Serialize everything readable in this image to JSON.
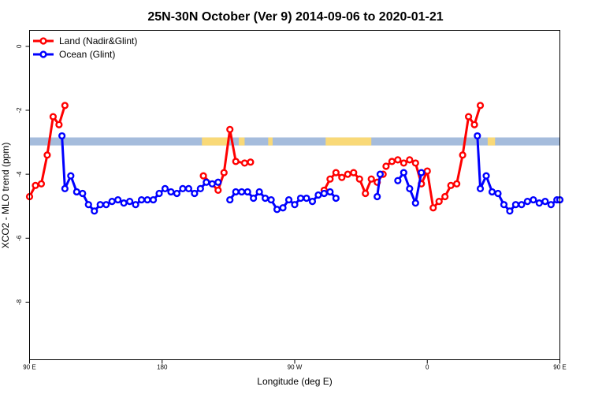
{
  "chart_data": {
    "type": "line",
    "title": "25N-30N October (Ver 9)   2014-09-06 to 2020-01-21",
    "xlabel": "Longitude (deg E)",
    "ylabel": "XCO2 - MLO trend (ppm)",
    "xlim": [
      90,
      450
    ],
    "ylim": [
      -9.8,
      0.5
    ],
    "x_ticks": [
      {
        "value": 90,
        "label": "90 E"
      },
      {
        "value": 180,
        "label": "180"
      },
      {
        "value": 270,
        "label": "90 W"
      },
      {
        "value": 360,
        "label": "0"
      },
      {
        "value": 450,
        "label": "90 E"
      },
      {
        "value": 540,
        "label": "180"
      }
    ],
    "x_range_shown": [
      90,
      450
    ],
    "y_ticks": [
      0,
      -2,
      -4,
      -6,
      -8
    ],
    "grid": false,
    "legend_position": "top-left",
    "land_mask_band": {
      "y_range": [
        -2.85,
        -3.1
      ],
      "ocean_color": "#a5bcdc",
      "land_color": "#f9d978",
      "land_segments": [
        [
          207,
          225
        ],
        [
          232,
          236
        ],
        [
          252,
          255
        ],
        [
          291,
          322
        ],
        [
          401,
          406
        ]
      ]
    },
    "series": [
      {
        "name": "Land (Nadir&Glint)",
        "color": "#ff0000",
        "segments": [
          [
            [
              90,
              -4.7
            ],
            [
              94,
              -4.35
            ],
            [
              98,
              -4.3
            ],
            [
              102,
              -3.4
            ],
            [
              106,
              -2.2
            ],
            [
              110,
              -2.45
            ],
            [
              114,
              -1.85
            ]
          ],
          [
            [
              208,
              -4.05
            ],
            [
              218,
              -4.5
            ],
            [
              222,
              -3.95
            ],
            [
              226,
              -2.6
            ],
            [
              230,
              -3.6
            ],
            [
              236,
              -3.65
            ],
            [
              240,
              -3.62
            ]
          ],
          [
            [
              290,
              -4.5
            ],
            [
              294,
              -4.15
            ],
            [
              298,
              -3.95
            ],
            [
              302,
              -4.1
            ],
            [
              306,
              -4.0
            ],
            [
              310,
              -3.95
            ],
            [
              314,
              -4.15
            ],
            [
              318,
              -4.6
            ],
            [
              322,
              -4.15
            ],
            [
              326,
              -4.25
            ],
            [
              330,
              -4.0
            ]
          ],
          [
            [
              332,
              -3.75
            ],
            [
              336,
              -3.6
            ],
            [
              340,
              -3.55
            ],
            [
              344,
              -3.65
            ],
            [
              348,
              -3.55
            ],
            [
              352,
              -3.65
            ],
            [
              356,
              -4.3
            ],
            [
              360,
              -3.9
            ],
            [
              364,
              -5.05
            ],
            [
              368,
              -4.85
            ],
            [
              372,
              -4.7
            ],
            [
              376,
              -4.35
            ],
            [
              380,
              -4.3
            ],
            [
              384,
              -3.4
            ],
            [
              388,
              -2.2
            ],
            [
              392,
              -2.45
            ],
            [
              396,
              -1.85
            ]
          ]
        ]
      },
      {
        "name": "Ocean (Glint)",
        "color": "#0000ff",
        "segments": [
          [
            [
              112,
              -2.8
            ],
            [
              114,
              -4.45
            ],
            [
              118,
              -4.05
            ],
            [
              122,
              -4.55
            ],
            [
              126,
              -4.6
            ],
            [
              130,
              -4.95
            ],
            [
              134,
              -5.15
            ],
            [
              138,
              -4.95
            ],
            [
              142,
              -4.95
            ],
            [
              146,
              -4.85
            ],
            [
              150,
              -4.8
            ],
            [
              154,
              -4.9
            ],
            [
              158,
              -4.85
            ],
            [
              162,
              -4.95
            ],
            [
              166,
              -4.8
            ],
            [
              170,
              -4.8
            ],
            [
              174,
              -4.8
            ],
            [
              178,
              -4.6
            ],
            [
              182,
              -4.45
            ],
            [
              186,
              -4.55
            ],
            [
              190,
              -4.6
            ],
            [
              194,
              -4.45
            ],
            [
              198,
              -4.45
            ],
            [
              202,
              -4.6
            ],
            [
              206,
              -4.45
            ],
            [
              210,
              -4.25
            ],
            [
              214,
              -4.3
            ],
            [
              218,
              -4.25
            ]
          ],
          [
            [
              226,
              -4.8
            ],
            [
              230,
              -4.55
            ],
            [
              234,
              -4.55
            ],
            [
              238,
              -4.55
            ],
            [
              242,
              -4.75
            ],
            [
              246,
              -4.55
            ],
            [
              250,
              -4.75
            ],
            [
              254,
              -4.8
            ],
            [
              258,
              -5.1
            ],
            [
              262,
              -5.05
            ],
            [
              266,
              -4.8
            ],
            [
              270,
              -4.95
            ],
            [
              274,
              -4.75
            ],
            [
              278,
              -4.75
            ],
            [
              282,
              -4.85
            ],
            [
              286,
              -4.65
            ],
            [
              290,
              -4.6
            ],
            [
              294,
              -4.55
            ],
            [
              298,
              -4.75
            ]
          ],
          [
            [
              326,
              -4.7
            ],
            [
              328,
              -4.0
            ]
          ],
          [
            [
              340,
              -4.2
            ],
            [
              344,
              -3.95
            ],
            [
              348,
              -4.45
            ],
            [
              352,
              -4.9
            ],
            [
              356,
              -3.95
            ]
          ],
          [
            [
              394,
              -2.8
            ],
            [
              396,
              -4.45
            ],
            [
              400,
              -4.05
            ],
            [
              404,
              -4.55
            ],
            [
              408,
              -4.6
            ],
            [
              412,
              -4.95
            ],
            [
              416,
              -5.15
            ],
            [
              420,
              -4.95
            ],
            [
              424,
              -4.95
            ],
            [
              428,
              -4.85
            ],
            [
              432,
              -4.8
            ],
            [
              436,
              -4.9
            ],
            [
              440,
              -4.85
            ],
            [
              444,
              -4.95
            ],
            [
              448,
              -4.8
            ],
            [
              450,
              -4.8
            ]
          ]
        ]
      }
    ]
  }
}
